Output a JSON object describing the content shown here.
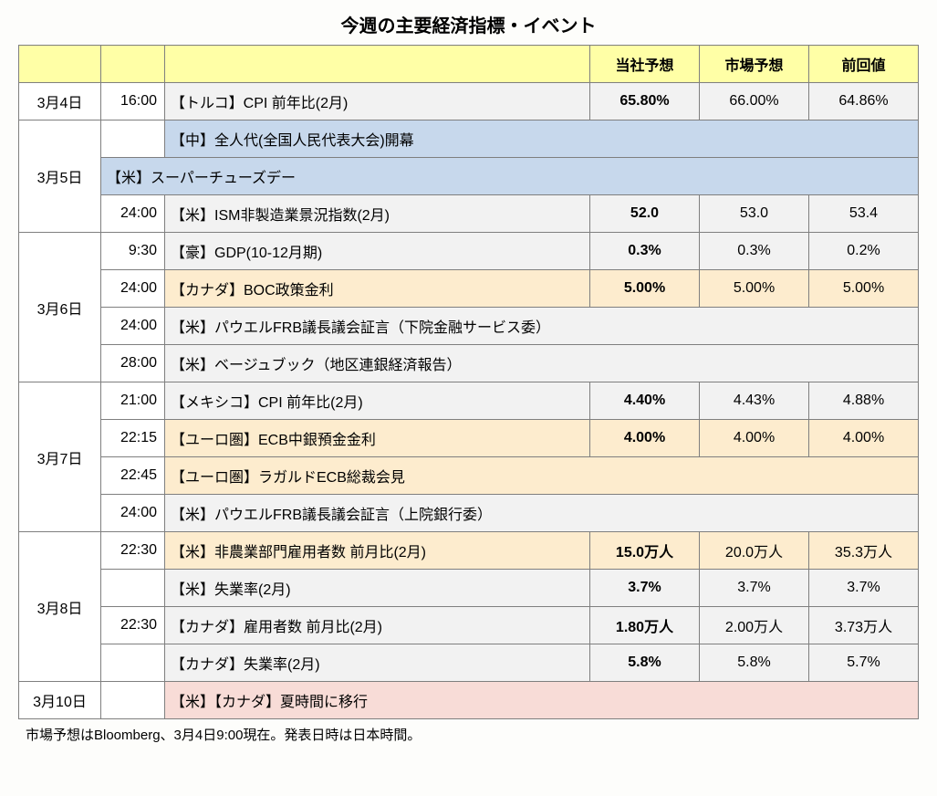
{
  "title": "今週の主要経済指標・イベント",
  "headers": {
    "forecast_us": "当社予想",
    "forecast_market": "市場予想",
    "previous": "前回値"
  },
  "colors": {
    "header_bg": "#ffffa6",
    "row_gray": "#f2f2f2",
    "row_white": "#ffffff",
    "row_blue": "#c7d8ec",
    "row_cream": "#fdecce",
    "row_pink": "#f8dcd7",
    "border": "#7f7f7f"
  },
  "days": [
    {
      "date": "3月4日",
      "rows": [
        {
          "time": "16:00",
          "event": "【トルコ】CPI 前年比(2月)",
          "v1": "65.80%",
          "v2": "66.00%",
          "v3": "64.86%",
          "bg": "gray"
        }
      ]
    },
    {
      "date": "3月5日",
      "rows": [
        {
          "time": "",
          "event": "【中】全人代(全国人民代表大会)開幕",
          "span": true,
          "bg": "blue"
        },
        {
          "time": "",
          "event": "【米】スーパーチューズデー",
          "span": true,
          "bg": "blue",
          "no_time": true
        },
        {
          "time": "24:00",
          "event": "【米】ISM非製造業景況指数(2月)",
          "v1": "52.0",
          "v2": "53.0",
          "v3": "53.4",
          "bg": "gray"
        }
      ]
    },
    {
      "date": "3月6日",
      "rows": [
        {
          "time": "9:30",
          "event": "【豪】GDP(10-12月期)",
          "v1": "0.3%",
          "v2": "0.3%",
          "v3": "0.2%",
          "bg": "gray"
        },
        {
          "time": "24:00",
          "event": "【カナダ】BOC政策金利",
          "v1": "5.00%",
          "v2": "5.00%",
          "v3": "5.00%",
          "bg": "cream"
        },
        {
          "time": "24:00",
          "event": "【米】パウエルFRB議長議会証言（下院金融サービス委）",
          "span": true,
          "bg": "gray"
        },
        {
          "time": "28:00",
          "event": "【米】ベージュブック（地区連銀経済報告）",
          "span": true,
          "bg": "gray"
        }
      ]
    },
    {
      "date": "3月7日",
      "rows": [
        {
          "time": "21:00",
          "event": "【メキシコ】CPI 前年比(2月)",
          "v1": "4.40%",
          "v2": "4.43%",
          "v3": "4.88%",
          "bg": "gray"
        },
        {
          "time": "22:15",
          "event": "【ユーロ圏】ECB中銀預金金利",
          "v1": "4.00%",
          "v2": "4.00%",
          "v3": "4.00%",
          "bg": "cream"
        },
        {
          "time": "22:45",
          "event": "【ユーロ圏】ラガルドECB総裁会見",
          "span": true,
          "bg": "cream"
        },
        {
          "time": "24:00",
          "event": "【米】パウエルFRB議長議会証言（上院銀行委）",
          "span": true,
          "bg": "gray"
        }
      ]
    },
    {
      "date": "3月8日",
      "rows": [
        {
          "time": "22:30",
          "event": "【米】非農業部門雇用者数 前月比(2月)",
          "v1": "15.0万人",
          "v2": "20.0万人",
          "v3": "35.3万人",
          "bg": "cream"
        },
        {
          "time": "",
          "event": "【米】失業率(2月)",
          "v1": "3.7%",
          "v2": "3.7%",
          "v3": "3.7%",
          "bg": "gray"
        },
        {
          "time": "22:30",
          "event": "【カナダ】雇用者数 前月比(2月)",
          "v1": "1.80万人",
          "v2": "2.00万人",
          "v3": "3.73万人",
          "bg": "gray"
        },
        {
          "time": "",
          "event": "【カナダ】失業率(2月)",
          "v1": "5.8%",
          "v2": "5.8%",
          "v3": "5.7%",
          "bg": "gray"
        }
      ]
    },
    {
      "date": "3月10日",
      "rows": [
        {
          "time": "",
          "event": "【米】【カナダ】夏時間に移行",
          "span": true,
          "bg": "pink"
        }
      ]
    }
  ],
  "footnote": "市場予想はBloomberg、3月4日9:00現在。発表日時は日本時間。"
}
